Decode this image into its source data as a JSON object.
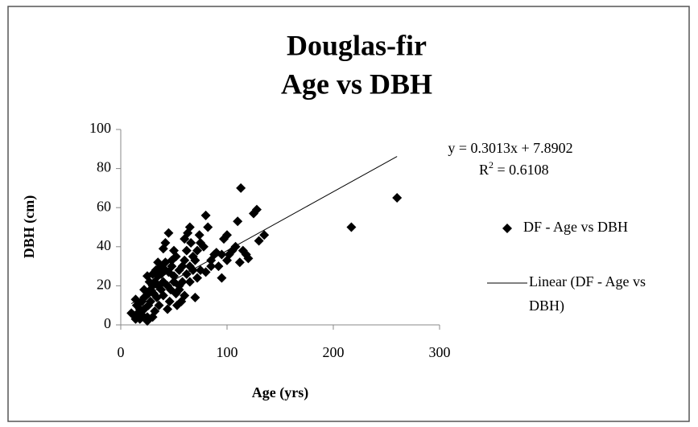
{
  "chart_data": {
    "type": "scatter",
    "title": [
      "Douglas-fir",
      "Age vs DBH"
    ],
    "x_label": "Age (yrs)",
    "y_label": "DBH (cm)",
    "xlim": [
      0,
      300
    ],
    "xticks": [
      0,
      100,
      200,
      300
    ],
    "ylim": [
      0,
      100
    ],
    "yticks": [
      0,
      20,
      40,
      60,
      80,
      100
    ],
    "grid": false,
    "legend": "right",
    "annotations": {
      "equation": "y = 0.3013x + 7.8902",
      "r2": {
        "text": "R",
        "sup": "2",
        "rest": " = 0.6108"
      }
    },
    "series": [
      {
        "name": "DF - Age vs DBH",
        "color": "#000000",
        "marker": "diamond",
        "x": [
          217,
          260,
          113,
          128,
          125,
          135,
          130,
          120,
          115,
          110,
          112,
          105,
          100,
          97,
          95,
          100,
          95,
          90,
          85,
          88,
          82,
          80,
          78,
          75,
          72,
          75,
          70,
          68,
          65,
          63,
          60,
          65,
          62,
          58,
          55,
          60,
          57,
          52,
          50,
          48,
          50,
          45,
          42,
          40,
          38,
          35,
          35,
          40,
          42,
          44,
          46,
          44,
          40,
          38,
          36,
          34,
          32,
          30,
          30,
          28,
          28,
          26,
          25,
          25,
          24,
          22,
          22,
          20,
          20,
          18,
          18,
          16,
          15,
          14,
          14,
          12,
          10,
          25,
          30,
          32,
          70,
          65,
          55,
          52,
          48,
          45,
          62,
          68,
          72,
          80,
          85,
          92,
          102,
          108,
          118,
          55,
          42,
          38,
          50,
          58,
          60,
          53,
          47,
          35,
          27,
          33,
          22,
          26,
          31,
          66,
          74
        ],
        "values": [
          50,
          65,
          70,
          59,
          57,
          46,
          43,
          34,
          38,
          53,
          32,
          38,
          46,
          44,
          36,
          33,
          24,
          37,
          30,
          36,
          50,
          56,
          40,
          42,
          38,
          28,
          33,
          35,
          50,
          47,
          44,
          30,
          26,
          22,
          20,
          15,
          12,
          16,
          25,
          30,
          38,
          47,
          42,
          39,
          30,
          32,
          25,
          22,
          28,
          20,
          12,
          8,
          15,
          18,
          10,
          14,
          22,
          20,
          26,
          12,
          18,
          10,
          25,
          4,
          15,
          8,
          18,
          5,
          12,
          3,
          8,
          6,
          10,
          3,
          13,
          5,
          6,
          2,
          4,
          7,
          14,
          22,
          28,
          35,
          33,
          27,
          38,
          28,
          24,
          27,
          33,
          30,
          36,
          40,
          36,
          18,
          32,
          26,
          22,
          30,
          33,
          10,
          18,
          20,
          22,
          28,
          14,
          16,
          16,
          42,
          46
        ]
      },
      {
        "name": "Linear (DF - Age vs DBH)",
        "color": "#000000",
        "line": true,
        "x": [
          10,
          260
        ],
        "values": [
          10.9,
          86.2
        ]
      }
    ]
  }
}
